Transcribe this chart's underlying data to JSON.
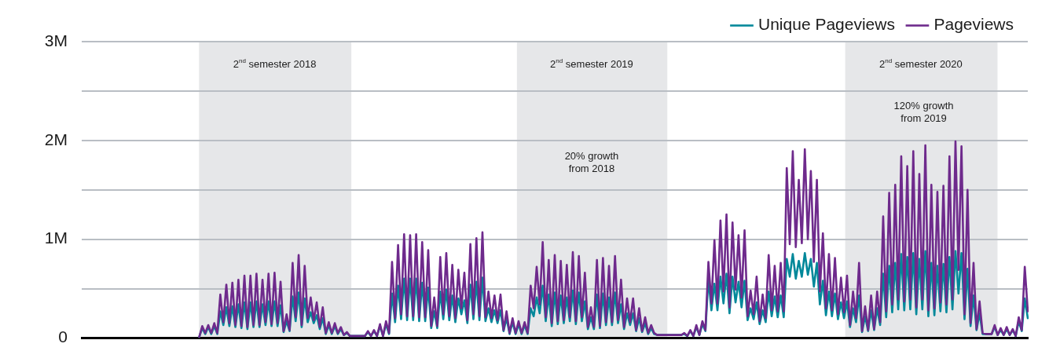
{
  "chart_data": {
    "type": "line",
    "legend": "top right",
    "grid": "y",
    "tick_labels": "y",
    "line_style": "solid",
    "categories": [
      null,
      null,
      null,
      null,
      null,
      null,
      null,
      null,
      null,
      null,
      null,
      null,
      null,
      null,
      null,
      null,
      null,
      null,
      null,
      null,
      null,
      null,
      null,
      null,
      null,
      null,
      null,
      null,
      null,
      null,
      null,
      null,
      null,
      null,
      null,
      null,
      null,
      null,
      null,
      null,
      null,
      null,
      null,
      null,
      null,
      null,
      null,
      null,
      null,
      null,
      null,
      null,
      null,
      null,
      null,
      null,
      null,
      null,
      null,
      null,
      null,
      null,
      null,
      null,
      null,
      null,
      null,
      null,
      null,
      null,
      null,
      null,
      null,
      null,
      null,
      null,
      null,
      null,
      null,
      null,
      null,
      null,
      null,
      null,
      null,
      null,
      null,
      null,
      null,
      null,
      null,
      null,
      null,
      null,
      null,
      null,
      null,
      null,
      null,
      null,
      null,
      null,
      null,
      null,
      null,
      null,
      null,
      null,
      null,
      null,
      null,
      null,
      null,
      null,
      null,
      null,
      null,
      null,
      null,
      null,
      null,
      null,
      null,
      null,
      null,
      null,
      null,
      null,
      null,
      null,
      null,
      null,
      null,
      null,
      null,
      null,
      null,
      null,
      null,
      null,
      null,
      null,
      null,
      null,
      null,
      null,
      null,
      null,
      null,
      null,
      null,
      null,
      null,
      null,
      null,
      null,
      null,
      null,
      null,
      null,
      null,
      null,
      null,
      null,
      null,
      null,
      null,
      null,
      null,
      null,
      null,
      null,
      null,
      null,
      null,
      null,
      null,
      null,
      null,
      null,
      null,
      null,
      null,
      null,
      null,
      null,
      null,
      null,
      null,
      null,
      null,
      null,
      null,
      null,
      null,
      null,
      null,
      null,
      null,
      null,
      null,
      null,
      null,
      null,
      null,
      null,
      null,
      null,
      null,
      null,
      null,
      null,
      null,
      null,
      null,
      null,
      null,
      null,
      null,
      null,
      null,
      null,
      null,
      null,
      null,
      null,
      null,
      null,
      null,
      null,
      null,
      null,
      null,
      null,
      null,
      null,
      null,
      null,
      null,
      null,
      null,
      null,
      null,
      null,
      null,
      null,
      null,
      null,
      null,
      null,
      null,
      null,
      null,
      null,
      null,
      null,
      null,
      null,
      null,
      null,
      null,
      null,
      null,
      null,
      null,
      null,
      null,
      null,
      null,
      null,
      null,
      null,
      null,
      null,
      null,
      null,
      null,
      null,
      null,
      null,
      null,
      null,
      null,
      null,
      null,
      null,
      null,
      null,
      null,
      null,
      null,
      null,
      null,
      null,
      null,
      null,
      null,
      null,
      null,
      null,
      null,
      null,
      null,
      null,
      null,
      null,
      null,
      null,
      null,
      null,
      null,
      null,
      null,
      null,
      null
    ],
    "ylim": [
      0,
      3000000
    ],
    "yticks": [
      {
        "value": 0,
        "label": "0"
      },
      {
        "value": 500000,
        "label": null
      },
      {
        "value": 1000000,
        "label": "1M"
      },
      {
        "value": 1500000,
        "label": null
      },
      {
        "value": 2000000,
        "label": "2M"
      },
      {
        "value": 2500000,
        "label": null
      },
      {
        "value": 3000000,
        "label": "3M"
      }
    ],
    "annotations": [
      "2$^{nd}$ semester 2018",
      "2$^{nd}$ semester 2019",
      "2$^{nd}$ semester 2020",
      "20% growth\nfrom 2018",
      "120% growth\nfrom 2019"
    ],
    "series": [
      {
        "name": "Unique Pageviews",
        "color": "#00889a",
        "values": [
          null,
          null,
          null,
          null,
          null,
          null,
          null,
          null,
          null,
          null,
          null,
          null,
          null,
          null,
          null,
          null,
          null,
          null,
          null,
          null,
          null,
          null,
          null,
          null,
          null,
          null,
          null,
          null,
          null,
          null,
          null,
          null,
          null,
          null,
          null,
          null,
          null,
          null,
          null,
          10000,
          100000,
          40000,
          110000,
          40000,
          120000,
          40000,
          270000,
          130000,
          310000,
          120000,
          320000,
          110000,
          340000,
          100000,
          360000,
          90000,
          360000,
          110000,
          370000,
          110000,
          340000,
          130000,
          370000,
          120000,
          370000,
          120000,
          330000,
          60000,
          170000,
          70000,
          420000,
          170000,
          460000,
          110000,
          400000,
          160000,
          260000,
          150000,
          230000,
          90000,
          200000,
          40000,
          130000,
          40000,
          120000,
          40000,
          90000,
          30000,
          50000,
          20000,
          20000,
          20000,
          20000,
          20000,
          20000,
          60000,
          20000,
          70000,
          20000,
          120000,
          20000,
          140000,
          40000,
          450000,
          160000,
          530000,
          190000,
          600000,
          180000,
          600000,
          180000,
          600000,
          170000,
          560000,
          170000,
          510000,
          100000,
          270000,
          100000,
          470000,
          190000,
          490000,
          180000,
          430000,
          160000,
          400000,
          240000,
          380000,
          150000,
          540000,
          190000,
          570000,
          180000,
          610000,
          170000,
          300000,
          160000,
          280000,
          150000,
          280000,
          70000,
          200000,
          40000,
          160000,
          40000,
          140000,
          40000,
          130000,
          40000,
          300000,
          220000,
          410000,
          250000,
          530000,
          170000,
          440000,
          120000,
          460000,
          140000,
          430000,
          150000,
          410000,
          170000,
          480000,
          140000,
          460000,
          170000,
          370000,
          90000,
          210000,
          90000,
          440000,
          100000,
          450000,
          130000,
          410000,
          130000,
          460000,
          150000,
          340000,
          90000,
          250000,
          130000,
          250000,
          70000,
          200000,
          60000,
          150000,
          40000,
          100000,
          40000,
          30000,
          30000,
          30000,
          30000,
          30000,
          30000,
          30000,
          30000,
          30000,
          40000,
          20000,
          70000,
          20000,
          110000,
          30000,
          140000,
          70000,
          600000,
          280000,
          550000,
          280000,
          620000,
          350000,
          650000,
          250000,
          620000,
          360000,
          570000,
          310000,
          580000,
          180000,
          300000,
          190000,
          360000,
          140000,
          280000,
          160000,
          470000,
          220000,
          420000,
          210000,
          430000,
          210000,
          800000,
          620000,
          850000,
          600000,
          780000,
          620000,
          860000,
          640000,
          800000,
          520000,
          760000,
          340000,
          580000,
          230000,
          470000,
          220000,
          450000,
          190000,
          360000,
          200000,
          370000,
          110000,
          300000,
          160000,
          430000,
          60000,
          220000,
          70000,
          280000,
          80000,
          300000,
          130000,
          650000,
          210000,
          730000,
          260000,
          760000,
          290000,
          850000,
          280000,
          820000,
          290000,
          860000,
          240000,
          800000,
          290000,
          880000,
          220000,
          760000,
          230000,
          730000,
          270000,
          750000,
          260000,
          820000,
          290000,
          880000,
          450000,
          860000,
          190000,
          700000,
          120000,
          430000,
          80000,
          250000,
          40000,
          40000,
          40000,
          40000,
          110000,
          30000,
          80000,
          30000,
          90000,
          30000,
          80000,
          20000,
          170000,
          70000,
          400000,
          200000
        ]
      },
      {
        "name": "Pageviews",
        "color": "#6e2a8c",
        "values": [
          null,
          null,
          null,
          null,
          null,
          null,
          null,
          null,
          null,
          null,
          null,
          null,
          null,
          null,
          null,
          null,
          null,
          null,
          null,
          null,
          null,
          null,
          null,
          null,
          null,
          null,
          null,
          null,
          null,
          null,
          null,
          null,
          null,
          null,
          null,
          null,
          null,
          null,
          null,
          10000,
          120000,
          50000,
          130000,
          50000,
          150000,
          50000,
          440000,
          160000,
          540000,
          150000,
          560000,
          130000,
          590000,
          120000,
          630000,
          110000,
          630000,
          130000,
          650000,
          130000,
          590000,
          160000,
          650000,
          140000,
          660000,
          150000,
          570000,
          70000,
          240000,
          80000,
          760000,
          210000,
          840000,
          130000,
          730000,
          200000,
          410000,
          180000,
          360000,
          110000,
          310000,
          50000,
          160000,
          50000,
          150000,
          50000,
          110000,
          30000,
          60000,
          20000,
          20000,
          20000,
          20000,
          20000,
          20000,
          70000,
          20000,
          80000,
          20000,
          140000,
          20000,
          170000,
          50000,
          770000,
          200000,
          940000,
          240000,
          1050000,
          220000,
          1040000,
          220000,
          1050000,
          210000,
          970000,
          210000,
          890000,
          120000,
          410000,
          120000,
          820000,
          240000,
          860000,
          220000,
          740000,
          200000,
          690000,
          300000,
          660000,
          180000,
          950000,
          240000,
          1010000,
          220000,
          1070000,
          210000,
          470000,
          200000,
          430000,
          180000,
          440000,
          80000,
          270000,
          50000,
          200000,
          50000,
          170000,
          50000,
          160000,
          50000,
          530000,
          300000,
          720000,
          340000,
          970000,
          210000,
          790000,
          150000,
          840000,
          170000,
          780000,
          180000,
          740000,
          210000,
          870000,
          170000,
          830000,
          210000,
          660000,
          110000,
          310000,
          110000,
          790000,
          120000,
          810000,
          160000,
          730000,
          160000,
          830000,
          180000,
          590000,
          110000,
          400000,
          160000,
          400000,
          80000,
          300000,
          70000,
          210000,
          50000,
          130000,
          50000,
          30000,
          30000,
          30000,
          30000,
          30000,
          30000,
          30000,
          30000,
          30000,
          50000,
          20000,
          80000,
          20000,
          130000,
          30000,
          170000,
          80000,
          770000,
          350000,
          990000,
          350000,
          1190000,
          470000,
          1250000,
          310000,
          1170000,
          490000,
          1040000,
          410000,
          1090000,
          220000,
          480000,
          240000,
          620000,
          170000,
          440000,
          200000,
          840000,
          280000,
          730000,
          270000,
          760000,
          270000,
          1720000,
          950000,
          1890000,
          920000,
          1600000,
          960000,
          1910000,
          1000000,
          1690000,
          770000,
          1600000,
          470000,
          1060000,
          300000,
          850000,
          280000,
          810000,
          240000,
          610000,
          260000,
          630000,
          130000,
          470000,
          200000,
          760000,
          70000,
          320000,
          80000,
          430000,
          90000,
          470000,
          160000,
          1230000,
          270000,
          1470000,
          340000,
          1550000,
          390000,
          1840000,
          370000,
          1740000,
          390000,
          1890000,
          310000,
          1660000,
          390000,
          1950000,
          280000,
          1550000,
          300000,
          1480000,
          360000,
          1540000,
          340000,
          1840000,
          390000,
          1990000,
          690000,
          1940000,
          240000,
          1500000,
          150000,
          760000,
          90000,
          370000,
          50000,
          40000,
          40000,
          40000,
          130000,
          30000,
          100000,
          30000,
          110000,
          30000,
          90000,
          20000,
          210000,
          80000,
          720000,
          270000
        ]
      }
    ]
  }
}
